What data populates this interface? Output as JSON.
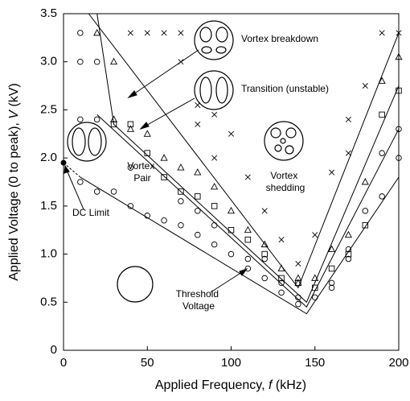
{
  "chart_data": {
    "type": "scatter",
    "xlabel": [
      "Applied Frequency, ",
      "f",
      " (kHz)"
    ],
    "ylabel": [
      "Applied Voltage (0 to peak), ",
      "V",
      " (kV)"
    ],
    "xlim": [
      0,
      200
    ],
    "xticks": [
      0,
      50,
      100,
      150,
      200
    ],
    "ylim": [
      0,
      3.5
    ],
    "yticks": [
      0,
      0.5,
      {
        "value": 1,
        "label": "1.0"
      },
      1.5,
      {
        "value": 2,
        "label": "2.0"
      },
      2.5,
      {
        "value": 3,
        "label": "3.0"
      },
      3.5
    ],
    "color": "#000000",
    "series": [
      {
        "marker": "circle",
        "x": [
          10,
          10,
          20,
          10,
          20,
          10,
          20,
          30,
          40,
          40,
          50,
          60,
          70,
          70,
          80,
          80,
          90,
          90,
          100,
          110,
          110,
          120,
          120,
          130,
          130,
          140,
          140,
          150,
          160,
          160,
          170,
          170,
          180,
          190,
          190,
          200,
          200
        ],
        "values": [
          3.3,
          3.0,
          3.0,
          2.4,
          2.4,
          1.75,
          1.65,
          1.65,
          1.9,
          1.5,
          1.4,
          1.35,
          1.55,
          1.3,
          1.45,
          1.2,
          1.1,
          1.3,
          1.0,
          0.95,
          0.85,
          0.95,
          0.75,
          0.7,
          0.6,
          0.55,
          0.48,
          0.55,
          0.7,
          0.65,
          1.05,
          0.95,
          1.45,
          1.6,
          2.05,
          2.3,
          2.0
        ]
      },
      {
        "marker": "triangle",
        "x": [
          20,
          30,
          30,
          40,
          50,
          60,
          70,
          80,
          90,
          100,
          110,
          120,
          130,
          140,
          140,
          150,
          160,
          170,
          180,
          190,
          200
        ],
        "values": [
          3.3,
          3.0,
          2.4,
          2.3,
          2.25,
          2.0,
          1.9,
          1.85,
          1.7,
          1.45,
          1.25,
          1.1,
          0.85,
          0.7,
          0.75,
          0.75,
          1.05,
          1.2,
          1.75,
          2.8,
          3.05
        ]
      },
      {
        "marker": "square",
        "x": [
          30,
          40,
          50,
          60,
          70,
          80,
          90,
          100,
          110,
          120,
          130,
          140,
          150,
          160,
          170,
          180,
          190,
          200
        ],
        "values": [
          2.35,
          2.35,
          2.05,
          1.8,
          1.65,
          1.6,
          1.5,
          1.25,
          1.15,
          1.0,
          0.75,
          0.7,
          0.65,
          0.85,
          1.0,
          1.3,
          2.45,
          2.7
        ]
      },
      {
        "marker": "cross",
        "x": [
          40,
          50,
          60,
          70,
          70,
          80,
          80,
          90,
          90,
          100,
          110,
          120,
          130,
          140,
          150,
          160,
          170,
          170,
          180,
          190,
          200
        ],
        "values": [
          3.3,
          3.3,
          3.3,
          3.3,
          3.0,
          2.55,
          2.35,
          2.0,
          2.45,
          2.25,
          1.8,
          1.45,
          1.15,
          0.9,
          1.2,
          1.85,
          2.05,
          2.4,
          2.75,
          3.3,
          3.3
        ]
      }
    ],
    "lines": [
      {
        "x": [
          10,
          145,
          200
        ],
        "values": [
          1.8,
          0.38,
          1.8
        ]
      },
      {
        "x": [
          20,
          145,
          200
        ],
        "values": [
          2.45,
          0.45,
          2.3
        ]
      },
      {
        "x": [
          20,
          30,
          145,
          200
        ],
        "values": [
          3.5,
          2.35,
          0.5,
          2.75
        ]
      },
      {
        "x": [
          15,
          140,
          200
        ],
        "values": [
          3.5,
          0.65,
          3.3
        ]
      }
    ],
    "dc_limit": {
      "x": [
        0,
        10
      ],
      "values": [
        1.95,
        1.8
      ]
    },
    "annotations": {
      "vortex_breakdown": "Vortex breakdown",
      "transition": "Transition (unstable)",
      "vortex_pair": [
        "Vortex",
        "Pair"
      ],
      "vortex_shedding": [
        "Vortex",
        "shedding"
      ],
      "dc_limit": "DC Limit",
      "threshold": [
        "Threshold",
        "Voltage"
      ]
    }
  }
}
